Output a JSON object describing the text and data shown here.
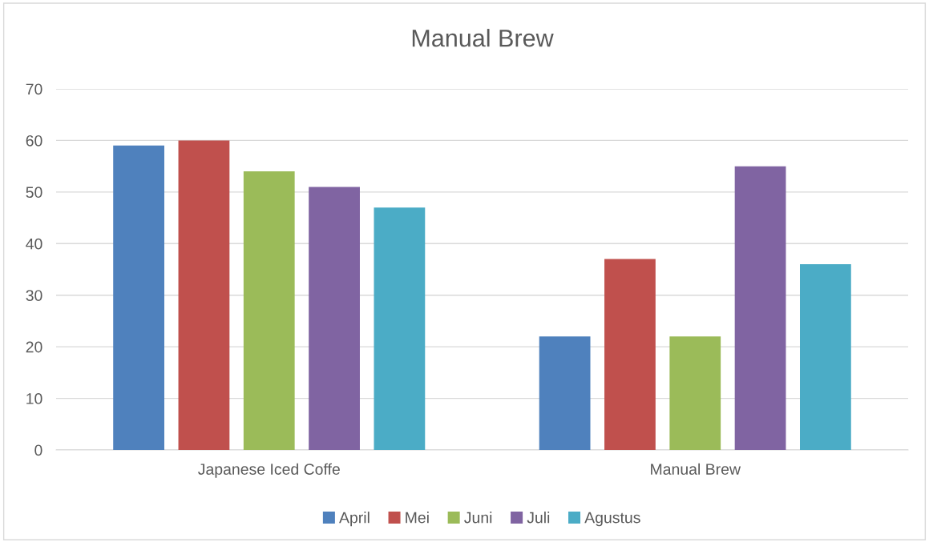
{
  "chart_data": {
    "type": "bar",
    "title": "Manual Brew",
    "categories": [
      "Japanese Iced Coffe",
      "Manual Brew"
    ],
    "series": [
      {
        "name": "April",
        "color": "#4f81bd",
        "values": [
          59,
          22
        ]
      },
      {
        "name": "Mei",
        "color": "#c0504d",
        "values": [
          60,
          37
        ]
      },
      {
        "name": "Juni",
        "color": "#9bbb59",
        "values": [
          54,
          22
        ]
      },
      {
        "name": "Juli",
        "color": "#8064a2",
        "values": [
          51,
          55
        ]
      },
      {
        "name": "Agustus",
        "color": "#4bacc6",
        "values": [
          47,
          36
        ]
      }
    ],
    "ylim": [
      0,
      70
    ],
    "yticks": [
      0,
      10,
      20,
      30,
      40,
      50,
      60,
      70
    ],
    "grid": "y",
    "legend": "bottom"
  }
}
